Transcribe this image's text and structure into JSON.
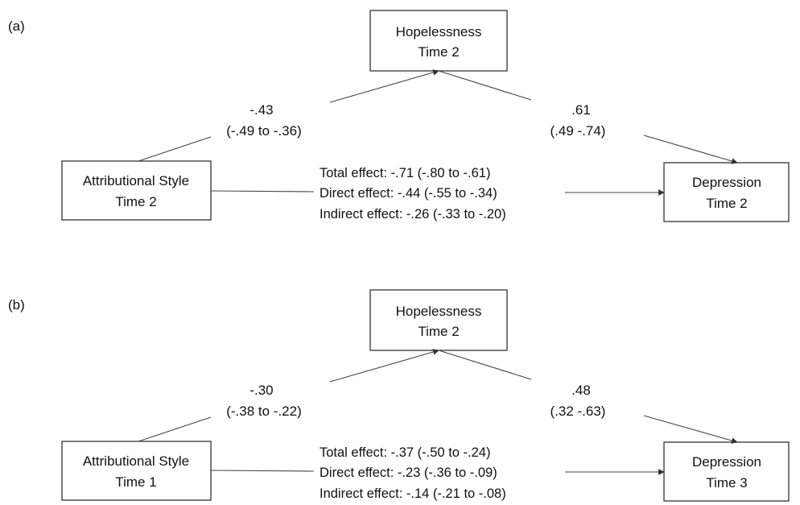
{
  "panels": [
    {
      "id": "a",
      "label": "(a)",
      "mediator": {
        "line1": "Hopelessness",
        "line2": "Time 2"
      },
      "predictor": {
        "line1": "Attributional Style",
        "line2": "Time 2"
      },
      "outcome": {
        "line1": "Depression",
        "line2": "Time 2"
      },
      "path_a": {
        "estimate": "-.43",
        "ci": "(-.49 to -.36)"
      },
      "path_b": {
        "estimate": ".61",
        "ci": "(.49 -.74)"
      },
      "effects": {
        "total": "Total effect: -.71 (-.80 to -.61)",
        "direct": "Direct effect: -.44 (-.55 to -.34)",
        "indirect": "Indirect effect: -.26 (-.33 to -.20)"
      }
    },
    {
      "id": "b",
      "label": "(b)",
      "mediator": {
        "line1": "Hopelessness",
        "line2": "Time 2"
      },
      "predictor": {
        "line1": "Attributional Style",
        "line2": "Time 1"
      },
      "outcome": {
        "line1": "Depression",
        "line2": "Time 3"
      },
      "path_a": {
        "estimate": "-.30",
        "ci": "(-.38 to -.22)"
      },
      "path_b": {
        "estimate": ".48",
        "ci": "(.32 -.63)"
      },
      "effects": {
        "total": "Total effect: -.37 (-.50 to -.24)",
        "direct": "Direct effect: -.23 (-.36 to -.09)",
        "indirect": "Indirect effect: -.14 (-.21 to -.08)"
      }
    }
  ],
  "colors": {
    "line": "#444444",
    "text": "#111111",
    "box_border": "#333333"
  }
}
